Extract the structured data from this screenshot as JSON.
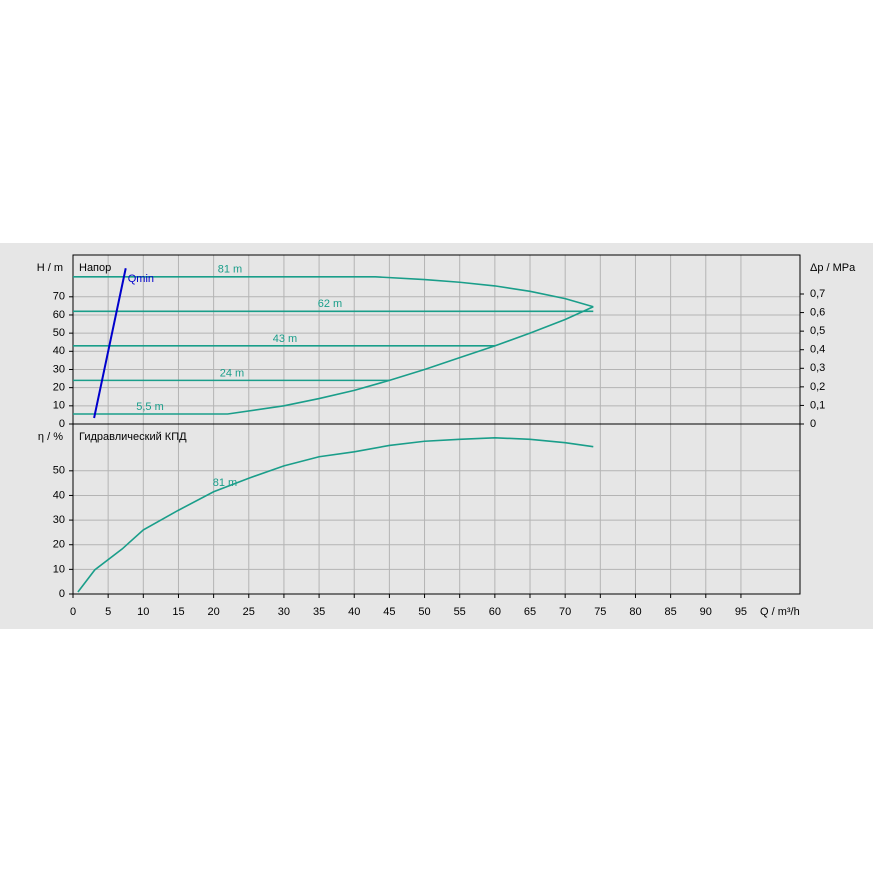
{
  "chart_data": [
    {
      "type": "line",
      "title": "Напор",
      "ylabel": "H / m",
      "y2label": "Δp / MPa",
      "xlim": [
        0,
        103.4
      ],
      "xticks": [
        0,
        5,
        10,
        15,
        20,
        25,
        30,
        35,
        40,
        45,
        50,
        55,
        60,
        65,
        70,
        75,
        80,
        85,
        90,
        95
      ],
      "ylim": [
        0,
        93
      ],
      "yticks": [
        0,
        10,
        20,
        30,
        40,
        50,
        60,
        70
      ],
      "y2lim": [
        0,
        0.91
      ],
      "y2ticks": [
        0,
        {
          "value": 0.1,
          "label": "0,1"
        },
        {
          "value": 0.2,
          "label": "0,2"
        },
        {
          "value": 0.3,
          "label": "0,3"
        },
        {
          "value": 0.4,
          "label": "0,4"
        },
        {
          "value": 0.5,
          "label": "0,5"
        },
        {
          "value": 0.6,
          "label": "0,6"
        },
        {
          "value": 0.7,
          "label": "0,7"
        }
      ],
      "grid": true,
      "series": [
        {
          "name": "81 m",
          "color": "#1a9e8a",
          "x": [
            0,
            43,
            50,
            55,
            60,
            65,
            70,
            74
          ],
          "values": [
            81,
            81,
            79.5,
            78,
            76,
            73,
            69,
            64.5
          ]
        },
        {
          "name": "62 m",
          "color": "#1a9e8a",
          "x": [
            0,
            74
          ],
          "values": [
            62,
            62
          ]
        },
        {
          "name": "43 m",
          "color": "#1a9e8a",
          "x": [
            0,
            60
          ],
          "values": [
            43,
            43
          ]
        },
        {
          "name": "24 m",
          "color": "#1a9e8a",
          "x": [
            0,
            45
          ],
          "values": [
            24,
            24
          ]
        },
        {
          "name": "5,5 m",
          "color": "#1a9e8a",
          "x": [
            0,
            22,
            30,
            35,
            40,
            45,
            50,
            55,
            60,
            65,
            70,
            74
          ],
          "values": [
            5.5,
            5.5,
            10,
            14,
            18.5,
            24,
            30,
            36.5,
            43,
            50,
            57.5,
            64.5
          ]
        },
        {
          "name": "Qmin",
          "color": "#0000cc",
          "x": [
            3.0,
            7.5
          ],
          "values": [
            3.3,
            85.7
          ]
        }
      ]
    },
    {
      "type": "line",
      "title": "Гидравлический КПД",
      "ylabel": "η / %",
      "xlabel": "Q / m³/h",
      "xlim": [
        0,
        103.4
      ],
      "xticks": [
        0,
        5,
        10,
        15,
        20,
        25,
        30,
        35,
        40,
        45,
        50,
        55,
        60,
        65,
        70,
        75,
        80,
        85,
        90,
        95
      ],
      "ylim": [
        0,
        69
      ],
      "yticks": [
        0,
        10,
        20,
        30,
        40,
        50
      ],
      "grid": true,
      "series": [
        {
          "name": "81 m",
          "color": "#1a9e8a",
          "x": [
            0.7,
            3.1,
            7,
            10,
            15,
            20,
            25,
            30,
            35,
            40,
            45,
            50,
            55,
            60,
            65,
            70,
            74
          ],
          "values": [
            0.8,
            9.8,
            18.3,
            26,
            34,
            41.5,
            47,
            52,
            55.7,
            57.7,
            60.3,
            62,
            62.8,
            63.4,
            62.8,
            61.4,
            59.8
          ]
        }
      ]
    }
  ]
}
